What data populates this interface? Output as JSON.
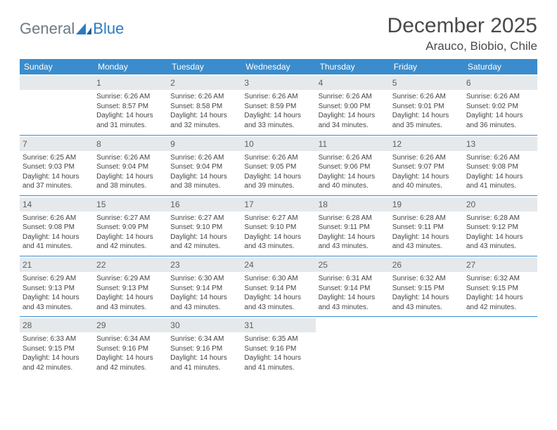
{
  "logo": {
    "text1": "General",
    "text2": "Blue"
  },
  "title": "December 2025",
  "location": "Arauco, Biobio, Chile",
  "headers": [
    "Sunday",
    "Monday",
    "Tuesday",
    "Wednesday",
    "Thursday",
    "Friday",
    "Saturday"
  ],
  "colors": {
    "header_bg": "#3b8ccc",
    "header_text": "#ffffff",
    "daynum_bg": "#e6e9eb",
    "daynum_text": "#5a5f63",
    "row_border": "#3b8ccc",
    "body_text": "#444444",
    "title_text": "#4a4a4a",
    "logo_gray": "#6b7a86",
    "logo_blue": "#2b7cc0",
    "background": "#ffffff"
  },
  "weeks": [
    [
      null,
      {
        "n": "1",
        "sr": "Sunrise: 6:26 AM",
        "ss": "Sunset: 8:57 PM",
        "d1": "Daylight: 14 hours",
        "d2": "and 31 minutes."
      },
      {
        "n": "2",
        "sr": "Sunrise: 6:26 AM",
        "ss": "Sunset: 8:58 PM",
        "d1": "Daylight: 14 hours",
        "d2": "and 32 minutes."
      },
      {
        "n": "3",
        "sr": "Sunrise: 6:26 AM",
        "ss": "Sunset: 8:59 PM",
        "d1": "Daylight: 14 hours",
        "d2": "and 33 minutes."
      },
      {
        "n": "4",
        "sr": "Sunrise: 6:26 AM",
        "ss": "Sunset: 9:00 PM",
        "d1": "Daylight: 14 hours",
        "d2": "and 34 minutes."
      },
      {
        "n": "5",
        "sr": "Sunrise: 6:26 AM",
        "ss": "Sunset: 9:01 PM",
        "d1": "Daylight: 14 hours",
        "d2": "and 35 minutes."
      },
      {
        "n": "6",
        "sr": "Sunrise: 6:26 AM",
        "ss": "Sunset: 9:02 PM",
        "d1": "Daylight: 14 hours",
        "d2": "and 36 minutes."
      }
    ],
    [
      {
        "n": "7",
        "sr": "Sunrise: 6:25 AM",
        "ss": "Sunset: 9:03 PM",
        "d1": "Daylight: 14 hours",
        "d2": "and 37 minutes."
      },
      {
        "n": "8",
        "sr": "Sunrise: 6:26 AM",
        "ss": "Sunset: 9:04 PM",
        "d1": "Daylight: 14 hours",
        "d2": "and 38 minutes."
      },
      {
        "n": "9",
        "sr": "Sunrise: 6:26 AM",
        "ss": "Sunset: 9:04 PM",
        "d1": "Daylight: 14 hours",
        "d2": "and 38 minutes."
      },
      {
        "n": "10",
        "sr": "Sunrise: 6:26 AM",
        "ss": "Sunset: 9:05 PM",
        "d1": "Daylight: 14 hours",
        "d2": "and 39 minutes."
      },
      {
        "n": "11",
        "sr": "Sunrise: 6:26 AM",
        "ss": "Sunset: 9:06 PM",
        "d1": "Daylight: 14 hours",
        "d2": "and 40 minutes."
      },
      {
        "n": "12",
        "sr": "Sunrise: 6:26 AM",
        "ss": "Sunset: 9:07 PM",
        "d1": "Daylight: 14 hours",
        "d2": "and 40 minutes."
      },
      {
        "n": "13",
        "sr": "Sunrise: 6:26 AM",
        "ss": "Sunset: 9:08 PM",
        "d1": "Daylight: 14 hours",
        "d2": "and 41 minutes."
      }
    ],
    [
      {
        "n": "14",
        "sr": "Sunrise: 6:26 AM",
        "ss": "Sunset: 9:08 PM",
        "d1": "Daylight: 14 hours",
        "d2": "and 41 minutes."
      },
      {
        "n": "15",
        "sr": "Sunrise: 6:27 AM",
        "ss": "Sunset: 9:09 PM",
        "d1": "Daylight: 14 hours",
        "d2": "and 42 minutes."
      },
      {
        "n": "16",
        "sr": "Sunrise: 6:27 AM",
        "ss": "Sunset: 9:10 PM",
        "d1": "Daylight: 14 hours",
        "d2": "and 42 minutes."
      },
      {
        "n": "17",
        "sr": "Sunrise: 6:27 AM",
        "ss": "Sunset: 9:10 PM",
        "d1": "Daylight: 14 hours",
        "d2": "and 43 minutes."
      },
      {
        "n": "18",
        "sr": "Sunrise: 6:28 AM",
        "ss": "Sunset: 9:11 PM",
        "d1": "Daylight: 14 hours",
        "d2": "and 43 minutes."
      },
      {
        "n": "19",
        "sr": "Sunrise: 6:28 AM",
        "ss": "Sunset: 9:11 PM",
        "d1": "Daylight: 14 hours",
        "d2": "and 43 minutes."
      },
      {
        "n": "20",
        "sr": "Sunrise: 6:28 AM",
        "ss": "Sunset: 9:12 PM",
        "d1": "Daylight: 14 hours",
        "d2": "and 43 minutes."
      }
    ],
    [
      {
        "n": "21",
        "sr": "Sunrise: 6:29 AM",
        "ss": "Sunset: 9:13 PM",
        "d1": "Daylight: 14 hours",
        "d2": "and 43 minutes."
      },
      {
        "n": "22",
        "sr": "Sunrise: 6:29 AM",
        "ss": "Sunset: 9:13 PM",
        "d1": "Daylight: 14 hours",
        "d2": "and 43 minutes."
      },
      {
        "n": "23",
        "sr": "Sunrise: 6:30 AM",
        "ss": "Sunset: 9:14 PM",
        "d1": "Daylight: 14 hours",
        "d2": "and 43 minutes."
      },
      {
        "n": "24",
        "sr": "Sunrise: 6:30 AM",
        "ss": "Sunset: 9:14 PM",
        "d1": "Daylight: 14 hours",
        "d2": "and 43 minutes."
      },
      {
        "n": "25",
        "sr": "Sunrise: 6:31 AM",
        "ss": "Sunset: 9:14 PM",
        "d1": "Daylight: 14 hours",
        "d2": "and 43 minutes."
      },
      {
        "n": "26",
        "sr": "Sunrise: 6:32 AM",
        "ss": "Sunset: 9:15 PM",
        "d1": "Daylight: 14 hours",
        "d2": "and 43 minutes."
      },
      {
        "n": "27",
        "sr": "Sunrise: 6:32 AM",
        "ss": "Sunset: 9:15 PM",
        "d1": "Daylight: 14 hours",
        "d2": "and 42 minutes."
      }
    ],
    [
      {
        "n": "28",
        "sr": "Sunrise: 6:33 AM",
        "ss": "Sunset: 9:15 PM",
        "d1": "Daylight: 14 hours",
        "d2": "and 42 minutes."
      },
      {
        "n": "29",
        "sr": "Sunrise: 6:34 AM",
        "ss": "Sunset: 9:16 PM",
        "d1": "Daylight: 14 hours",
        "d2": "and 42 minutes."
      },
      {
        "n": "30",
        "sr": "Sunrise: 6:34 AM",
        "ss": "Sunset: 9:16 PM",
        "d1": "Daylight: 14 hours",
        "d2": "and 41 minutes."
      },
      {
        "n": "31",
        "sr": "Sunrise: 6:35 AM",
        "ss": "Sunset: 9:16 PM",
        "d1": "Daylight: 14 hours",
        "d2": "and 41 minutes."
      },
      null,
      null,
      null
    ]
  ]
}
